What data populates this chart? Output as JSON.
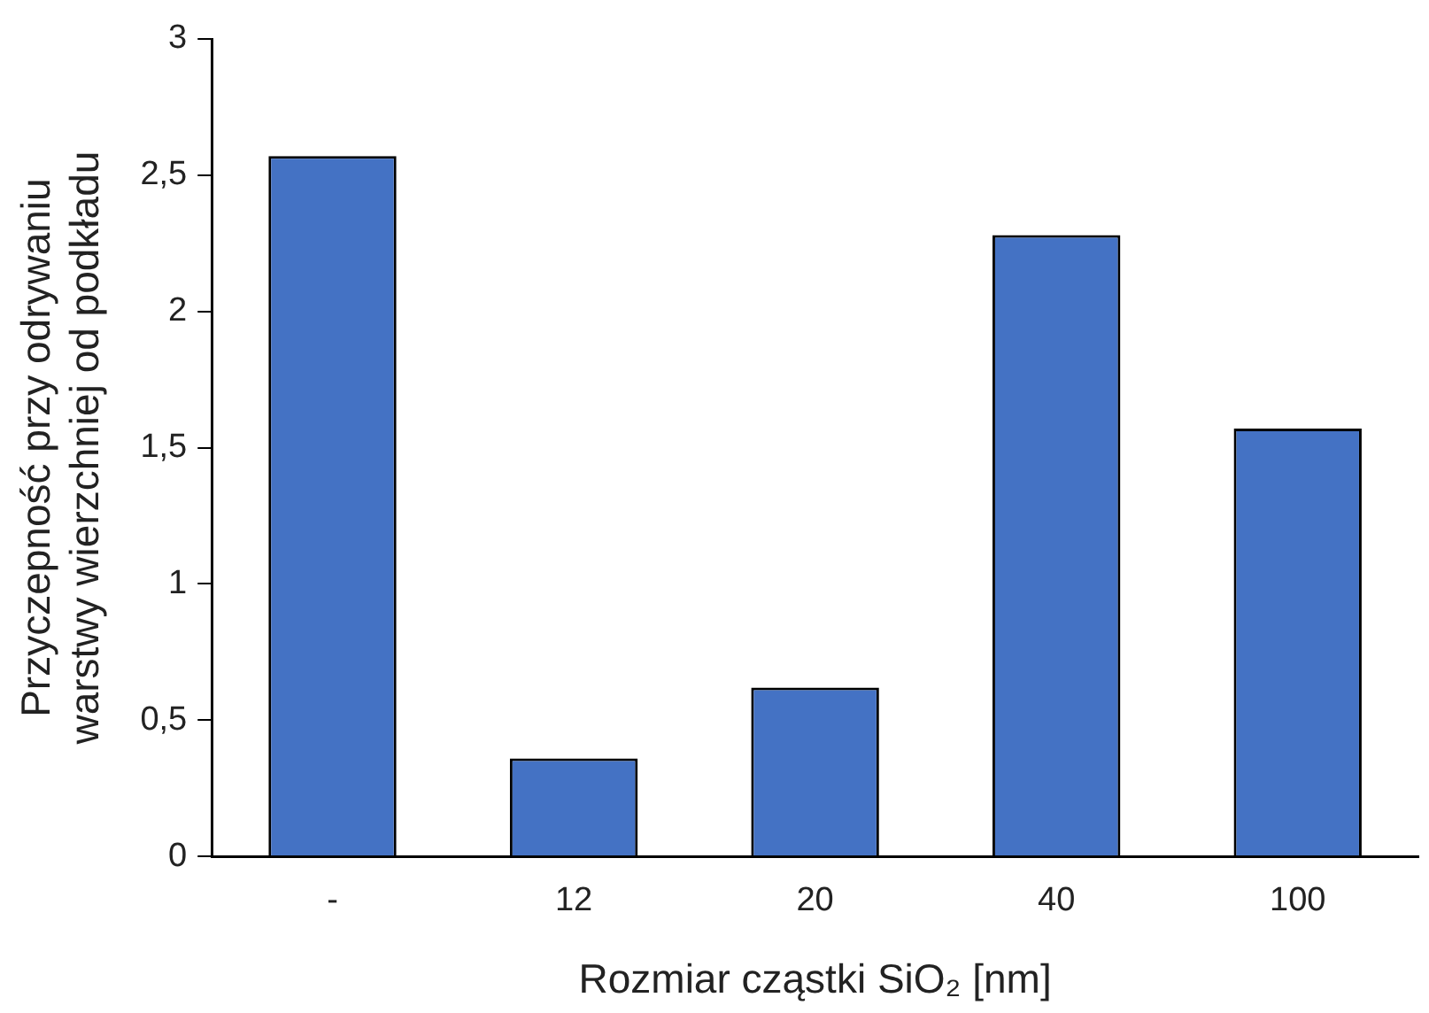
{
  "chart_data": {
    "type": "bar",
    "xlabel": "Rozmiar cząstki SiO₂ [nm]",
    "ylabel": "Przyczepność przy odrywaniu\nwarstwy wierzchniej od podkładu",
    "categories": [
      "-",
      "12",
      "20",
      "40",
      "100"
    ],
    "values": [
      2.57,
      0.36,
      0.62,
      2.28,
      1.57
    ],
    "color": "#4472c4",
    "ylim": [
      0,
      3
    ],
    "yticks": [
      0,
      {
        "value": 0.5,
        "label": "0,5"
      },
      1,
      {
        "value": 1.5,
        "label": "1,5"
      },
      2,
      {
        "value": 2.5,
        "label": "2,5"
      },
      3
    ],
    "grid": false,
    "legend": false
  }
}
